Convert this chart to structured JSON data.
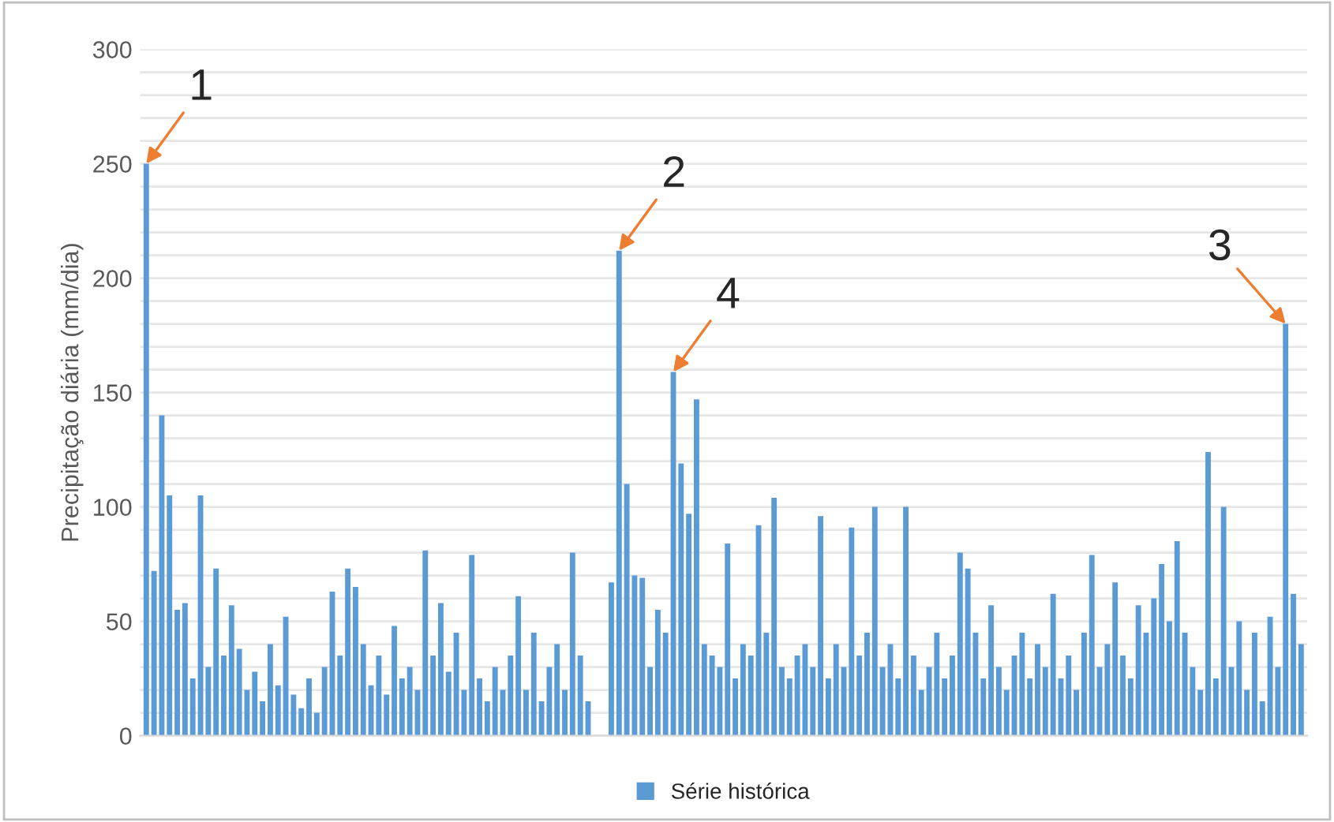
{
  "chart_data": {
    "type": "bar",
    "ylabel": "Precipitação diária (mm/dia)",
    "categories": [
      null,
      null,
      null,
      null,
      null,
      null,
      null,
      null,
      null,
      null,
      null,
      null,
      null,
      null,
      null,
      null,
      null,
      null,
      null,
      null,
      null,
      null,
      null,
      null,
      null,
      null,
      null,
      null,
      null,
      null,
      null,
      null,
      null,
      null,
      null,
      null,
      null,
      null,
      null,
      null,
      null,
      null,
      null,
      null,
      null,
      null,
      null,
      null,
      null,
      null,
      null,
      null,
      null,
      null,
      null,
      null,
      null,
      null,
      null,
      null,
      null,
      null,
      null,
      null,
      null,
      null,
      null,
      null,
      null,
      null,
      null,
      null,
      null,
      null,
      null,
      null,
      null,
      null,
      null,
      null,
      null,
      null,
      null,
      null,
      null,
      null,
      null,
      null,
      null,
      null,
      null,
      null,
      null,
      null,
      null,
      null,
      null,
      null,
      null,
      null,
      null,
      null,
      null,
      null,
      null,
      null,
      null,
      null,
      null,
      null,
      null,
      null,
      null,
      null,
      null,
      null,
      null,
      null,
      null,
      null,
      null,
      null,
      null,
      null,
      null,
      null,
      null,
      null,
      null,
      null,
      null,
      null,
      null,
      null,
      null,
      null,
      null,
      null,
      null,
      null,
      null,
      null,
      null,
      null,
      null,
      null,
      null,
      null,
      null,
      null
    ],
    "series": [
      {
        "name": "Série histórica",
        "color": "#5b9bd5",
        "values": [
          250,
          72,
          140,
          105,
          55,
          58,
          25,
          105,
          30,
          73,
          35,
          57,
          38,
          20,
          28,
          15,
          40,
          22,
          52,
          18,
          12,
          25,
          10,
          30,
          63,
          35,
          73,
          65,
          40,
          22,
          35,
          18,
          48,
          25,
          30,
          20,
          81,
          35,
          58,
          28,
          45,
          20,
          79,
          25,
          15,
          30,
          20,
          35,
          61,
          20,
          45,
          15,
          30,
          40,
          20,
          80,
          35,
          15,
          0,
          0,
          67,
          212,
          110,
          70,
          69,
          30,
          55,
          45,
          159,
          119,
          97,
          147,
          40,
          35,
          30,
          84,
          25,
          40,
          35,
          92,
          45,
          104,
          30,
          25,
          35,
          40,
          30,
          96,
          25,
          40,
          30,
          91,
          35,
          45,
          100,
          30,
          40,
          25,
          100,
          35,
          20,
          30,
          45,
          25,
          35,
          80,
          73,
          45,
          25,
          57,
          30,
          20,
          35,
          45,
          25,
          40,
          30,
          62,
          25,
          35,
          20,
          45,
          79,
          30,
          40,
          67,
          35,
          25,
          57,
          45,
          60,
          75,
          50,
          85,
          45,
          30,
          20,
          124,
          25,
          100,
          30,
          50,
          20,
          45,
          15,
          52,
          30,
          180,
          62,
          40
        ]
      }
    ],
    "ylim": [
      0,
      300
    ],
    "yticks": [
      0,
      {
        "value": 10,
        "label": null
      },
      {
        "value": 20,
        "label": null
      },
      {
        "value": 30,
        "label": null
      },
      {
        "value": 40,
        "label": null
      },
      50,
      {
        "value": 60,
        "label": null
      },
      {
        "value": 70,
        "label": null
      },
      {
        "value": 80,
        "label": null
      },
      {
        "value": 90,
        "label": null
      },
      100,
      {
        "value": 110,
        "label": null
      },
      {
        "value": 120,
        "label": null
      },
      {
        "value": 130,
        "label": null
      },
      {
        "value": 140,
        "label": null
      },
      150,
      {
        "value": 160,
        "label": null
      },
      {
        "value": 170,
        "label": null
      },
      {
        "value": 180,
        "label": null
      },
      {
        "value": 190,
        "label": null
      },
      200,
      {
        "value": 210,
        "label": null
      },
      {
        "value": 220,
        "label": null
      },
      {
        "value": 230,
        "label": null
      },
      {
        "value": 240,
        "label": null
      },
      250,
      {
        "value": 260,
        "label": null
      },
      {
        "value": 270,
        "label": null
      },
      {
        "value": 280,
        "label": null
      },
      {
        "value": 290,
        "label": null
      },
      300
    ],
    "grid": "y",
    "legend": "bottom",
    "annotations": [
      "1",
      "2",
      "3",
      "4"
    ]
  }
}
